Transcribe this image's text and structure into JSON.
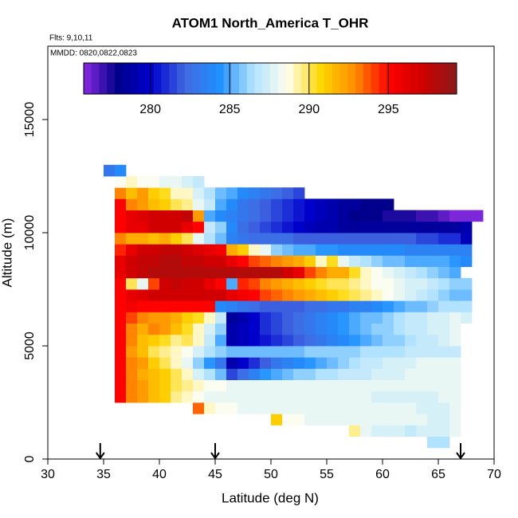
{
  "chart_data": {
    "type": "heatmap",
    "title": "ATOM1 North_America T_OHR",
    "subtitle": "Flts: 9,10,11",
    "annotation": "MMDD: 0820,0822,0823",
    "x_label": "Latitude (deg N)",
    "y_label": "Altitude (m)",
    "xlim": [
      30,
      70
    ],
    "xticks": [
      30,
      35,
      40,
      45,
      50,
      55,
      60,
      65,
      70
    ],
    "ylim": [
      0,
      18240
    ],
    "yticks": [
      0,
      5000,
      10000,
      15000
    ],
    "zlim": [
      275.8,
      299.3
    ],
    "colorbar_ticks": [
      280,
      285,
      290,
      295
    ],
    "colormap": [
      "#8a2be2",
      "#00008b",
      "#0000cd",
      "#4169e1",
      "#1e90ff",
      "#b0e2ff",
      "#fffff0",
      "#ffd700",
      "#ff8c00",
      "#ff0000",
      "#cd0000",
      "#8b1a1a"
    ],
    "arrow_lats": [
      34.7,
      45,
      67
    ],
    "xbins": [
      35,
      36,
      37,
      38,
      39,
      40,
      41,
      42,
      43,
      44,
      45,
      46,
      47,
      48,
      49,
      50,
      51,
      52,
      53,
      54,
      55,
      56,
      57,
      58,
      59,
      60,
      61,
      62,
      63,
      64,
      65,
      66,
      67,
      68,
      69,
      70
    ],
    "ybins": [
      500,
      1000,
      1500,
      2000,
      2500,
      3000,
      3500,
      4000,
      4500,
      5000,
      5500,
      6000,
      6500,
      7000,
      7500,
      8000,
      8500,
      9000,
      9500,
      10000,
      10500,
      11000,
      11500,
      12000,
      12500,
      13000
    ],
    "z": [
      [
        null,
        null,
        null,
        null,
        null,
        null,
        null,
        null,
        null,
        null,
        null,
        null,
        null,
        null,
        null,
        null,
        null,
        null,
        null,
        null,
        null,
        null,
        null,
        null,
        null,
        null,
        null,
        null,
        null,
        286.5,
        286.5,
        null,
        null,
        null,
        null
      ],
      [
        null,
        null,
        null,
        null,
        null,
        null,
        null,
        null,
        null,
        null,
        null,
        null,
        null,
        null,
        null,
        null,
        null,
        null,
        null,
        null,
        null,
        null,
        289.5,
        288,
        287.5,
        287.5,
        287.5,
        287,
        287.5,
        287.5,
        287.5,
        288,
        null,
        null,
        null
      ],
      [
        null,
        null,
        null,
        null,
        null,
        null,
        null,
        null,
        null,
        null,
        null,
        null,
        null,
        null,
        null,
        291,
        288.5,
        288.5,
        288,
        288,
        288,
        288,
        288,
        288,
        288,
        288,
        288,
        288,
        288,
        287.5,
        287.5,
        288,
        null,
        null,
        null
      ],
      [
        null,
        null,
        null,
        null,
        null,
        null,
        null,
        null,
        293.5,
        289,
        288.5,
        288.5,
        288,
        288,
        288,
        288,
        288,
        288,
        288,
        288,
        288,
        288,
        288,
        288,
        288,
        288,
        288,
        288,
        287.5,
        287.5,
        287.5,
        288,
        null,
        null,
        null
      ],
      [
        null,
        295,
        293,
        292.5,
        291.5,
        291,
        289.5,
        289,
        288.5,
        288,
        288,
        288,
        288,
        288,
        288,
        288,
        288,
        288,
        288,
        288,
        288,
        288,
        288,
        288,
        287.5,
        287.5,
        287.5,
        287.5,
        287.5,
        287.5,
        288,
        288,
        null,
        null,
        null
      ],
      [
        null,
        295,
        293,
        292.5,
        291.5,
        291,
        290,
        289.5,
        289,
        288.5,
        288.5,
        288,
        288,
        288,
        288,
        288,
        288,
        288,
        288,
        288,
        288,
        288,
        288,
        288,
        288,
        288,
        288,
        288,
        288,
        288,
        288,
        288,
        null,
        null,
        null
      ],
      [
        null,
        295,
        293,
        292,
        291.5,
        291,
        290,
        289,
        287.5,
        286.5,
        285.5,
        281.5,
        282.5,
        283.5,
        284.5,
        285,
        285.5,
        286,
        286,
        286.5,
        286.5,
        287,
        287,
        287,
        287.5,
        287.5,
        287.5,
        288,
        288,
        288,
        288,
        288,
        null,
        null,
        null
      ],
      [
        null,
        295,
        293,
        292.5,
        291,
        290,
        289,
        288,
        286,
        284.5,
        283,
        279,
        280,
        281,
        282,
        283,
        283.5,
        284,
        284.5,
        285,
        285.5,
        286,
        286.5,
        287,
        287,
        287.5,
        287.5,
        287.5,
        288,
        288,
        288,
        288,
        null,
        null,
        null
      ],
      [
        null,
        295,
        292.5,
        291.5,
        290,
        289.5,
        289,
        288.5,
        287.5,
        286.5,
        286,
        285.5,
        285.5,
        285.5,
        285.5,
        285.5,
        285.5,
        285.5,
        286,
        286,
        286,
        286,
        286,
        286.5,
        286.5,
        286.5,
        286.5,
        287,
        287,
        287,
        287,
        287,
        null,
        null,
        null
      ],
      [
        null,
        295,
        293,
        291.5,
        291,
        290.5,
        289.5,
        290,
        289,
        287,
        285,
        279,
        279.5,
        280,
        280.5,
        281,
        281.5,
        282,
        282.5,
        283,
        283.5,
        284,
        284.5,
        285,
        285.5,
        286,
        286,
        286.5,
        287,
        287,
        287.5,
        288,
        null,
        null,
        null
      ],
      [
        null,
        295,
        293,
        292,
        293,
        292.5,
        291.5,
        290.5,
        289,
        287.5,
        286,
        279,
        279.5,
        280,
        281,
        281.5,
        282,
        282.5,
        283,
        283.5,
        284,
        284.5,
        285,
        285.5,
        286,
        286,
        286.5,
        287,
        287,
        287.5,
        287.5,
        288,
        null,
        null,
        null
      ],
      [
        null,
        295,
        294,
        293,
        292.5,
        292.5,
        292,
        291,
        290.5,
        289,
        287,
        278.5,
        279,
        280,
        281,
        281.5,
        282,
        282.5,
        283,
        283.5,
        284,
        284.5,
        285,
        285.5,
        285.5,
        286,
        286.5,
        287,
        287,
        287.5,
        287.5,
        288,
        287.5,
        null,
        null
      ],
      [
        null,
        295,
        295.5,
        295,
        295,
        295,
        295,
        295,
        295,
        295,
        284,
        283.5,
        283,
        282.5,
        282,
        282,
        282,
        282,
        282.5,
        282.5,
        283,
        283,
        283.5,
        283.5,
        284,
        284.5,
        285,
        285.5,
        285.5,
        286,
        286.5,
        286.5,
        286.5,
        null,
        null
      ],
      [
        null,
        295,
        296,
        296.5,
        297,
        297,
        297,
        297,
        297,
        297,
        297,
        296,
        295.5,
        295,
        294,
        293.5,
        293,
        292.5,
        292,
        291.5,
        291,
        290.5,
        290,
        289.5,
        289,
        288.5,
        288,
        287.5,
        287,
        286.5,
        286,
        285.5,
        285.5,
        null,
        null
      ],
      [
        null,
        295,
        290,
        288,
        294,
        297,
        297.5,
        297,
        297,
        296,
        295,
        285,
        294.5,
        294,
        293,
        292.5,
        292,
        291.5,
        291,
        290.5,
        290,
        290,
        289.5,
        289,
        288.5,
        288.5,
        288,
        287.5,
        287.5,
        287,
        286.5,
        286,
        286,
        null,
        null
      ],
      [
        null,
        296,
        297,
        297.5,
        298,
        298,
        298,
        298,
        298,
        298,
        298,
        298,
        298,
        298,
        298,
        298,
        297,
        296,
        294,
        293,
        292,
        292,
        290.5,
        289,
        288.5,
        288,
        287.5,
        287,
        286.5,
        286,
        285.5,
        285,
        null,
        null,
        null
      ],
      [
        null,
        296,
        297,
        297.5,
        297.5,
        298,
        298,
        297.5,
        297.5,
        297,
        297,
        296,
        295,
        294,
        293.5,
        293,
        292.5,
        292,
        291,
        289,
        290.5,
        288,
        287,
        286.5,
        286,
        285.5,
        285.5,
        285,
        285,
        285,
        285,
        284.5,
        284,
        null,
        null
      ],
      [
        null,
        294.5,
        296,
        297,
        297,
        297.5,
        297.5,
        297,
        296.5,
        296,
        295.5,
        292,
        291,
        289,
        288,
        286,
        285.5,
        285,
        285,
        284.5,
        284.5,
        284,
        284,
        284,
        284,
        284,
        284,
        283.5,
        283.5,
        283.5,
        283.5,
        283.5,
        283.5,
        null,
        null
      ],
      [
        null,
        293,
        292,
        292,
        291.5,
        292,
        291,
        290,
        288,
        286.5,
        285.5,
        283.5,
        283,
        282.5,
        282.5,
        282.5,
        282.5,
        282,
        282,
        282,
        282,
        282,
        282,
        282,
        282,
        282,
        282,
        282,
        281.5,
        281.5,
        281,
        281,
        279.5,
        null,
        null
      ],
      [
        null,
        295,
        296,
        296,
        297,
        297,
        297,
        296,
        295,
        287,
        286,
        284,
        282.5,
        282,
        281.5,
        281,
        280.5,
        280,
        279.5,
        279,
        279,
        278.5,
        278.5,
        278.5,
        278.5,
        278.5,
        278.5,
        278.5,
        278.5,
        278.5,
        278.5,
        278.5,
        279,
        null,
        null
      ],
      [
        null,
        295,
        296,
        296.5,
        297,
        297,
        297,
        297.5,
        292.5,
        285,
        284,
        283.5,
        283,
        282.5,
        282,
        281.5,
        281,
        280.5,
        280,
        279.5,
        279,
        278.5,
        278,
        278,
        278,
        277.5,
        277.5,
        277.5,
        277,
        277,
        276.5,
        276,
        276,
        276,
        null
      ],
      [
        null,
        295,
        293,
        292.5,
        291.5,
        291,
        290,
        289.5,
        288,
        287,
        285,
        284,
        283,
        282.5,
        282,
        281.5,
        281,
        280.5,
        280,
        279.5,
        279,
        278.5,
        278.5,
        278,
        278,
        278,
        null,
        null,
        null,
        null,
        null,
        null,
        null,
        null,
        null
      ],
      [
        null,
        293,
        291.5,
        292.5,
        291,
        290.5,
        289,
        289,
        287.5,
        286.5,
        285.5,
        285,
        284,
        283.5,
        283,
        282.5,
        282,
        281.5,
        null,
        null,
        null,
        null,
        null,
        null,
        null,
        null,
        null,
        null,
        null,
        null,
        null,
        null,
        null,
        null,
        null
      ],
      [
        null,
        288.5,
        289,
        288.5,
        288.5,
        288,
        288,
        287.5,
        287,
        null,
        null,
        null,
        null,
        null,
        null,
        null,
        null,
        null,
        null,
        null,
        null,
        null,
        null,
        null,
        null,
        null,
        null,
        null,
        null,
        null,
        null,
        null,
        null,
        null,
        null
      ],
      [
        283,
        284,
        null,
        null,
        null,
        null,
        null,
        null,
        null,
        null,
        null,
        null,
        null,
        null,
        null,
        null,
        null,
        null,
        null,
        null,
        null,
        null,
        null,
        null,
        null,
        null,
        null,
        null,
        null,
        null,
        null,
        null,
        null,
        null,
        null
      ]
    ]
  }
}
